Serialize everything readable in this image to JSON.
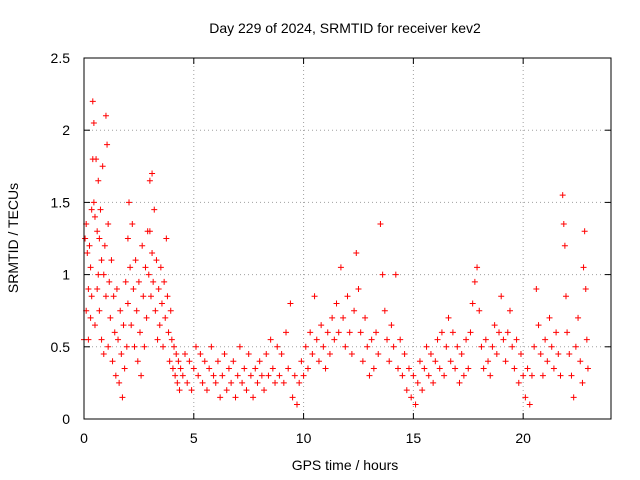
{
  "chart_data": {
    "type": "scatter",
    "title": "Day 229 of 2024, SRMTID for receiver kev2",
    "xlabel": "GPS time / hours",
    "ylabel": "SRMTID / TECUs",
    "xlim": [
      0,
      24
    ],
    "ylim": [
      0,
      2.5
    ],
    "xticks": [
      0,
      5,
      10,
      15,
      20
    ],
    "xtick_labels": [
      "0",
      "5",
      "10",
      "15",
      "20"
    ],
    "yticks": [
      0,
      0.5,
      1,
      1.5,
      2,
      2.5
    ],
    "ytick_labels": [
      "0",
      "0.5",
      "1",
      "1.5",
      "2",
      "2.5"
    ],
    "grid": true,
    "marker": "+",
    "series": [
      {
        "name": "SRMTID",
        "color": "#ff0000",
        "points": [
          [
            0.0,
            0.55
          ],
          [
            0.05,
            1.25
          ],
          [
            0.1,
            1.35
          ],
          [
            0.1,
            0.75
          ],
          [
            0.15,
            1.15
          ],
          [
            0.2,
            0.9
          ],
          [
            0.2,
            0.55
          ],
          [
            0.25,
            1.2
          ],
          [
            0.3,
            1.05
          ],
          [
            0.3,
            0.7
          ],
          [
            0.35,
            1.45
          ],
          [
            0.35,
            0.85
          ],
          [
            0.4,
            2.2
          ],
          [
            0.4,
            1.8
          ],
          [
            0.45,
            2.05
          ],
          [
            0.45,
            1.5
          ],
          [
            0.5,
            1.4
          ],
          [
            0.5,
            0.65
          ],
          [
            0.55,
            1.8
          ],
          [
            0.6,
            1.3
          ],
          [
            0.6,
            0.9
          ],
          [
            0.65,
            1.65
          ],
          [
            0.65,
            1.0
          ],
          [
            0.7,
            1.25
          ],
          [
            0.7,
            0.75
          ],
          [
            0.75,
            1.45
          ],
          [
            0.8,
            1.1
          ],
          [
            0.8,
            0.55
          ],
          [
            0.85,
            1.75
          ],
          [
            0.9,
            1.0
          ],
          [
            0.9,
            0.45
          ],
          [
            0.95,
            1.2
          ],
          [
            1.0,
            2.1
          ],
          [
            1.0,
            0.85
          ],
          [
            1.05,
            1.9
          ],
          [
            1.1,
            1.35
          ],
          [
            1.1,
            0.5
          ],
          [
            1.15,
            0.95
          ],
          [
            1.2,
            0.7
          ],
          [
            1.25,
            1.1
          ],
          [
            1.3,
            0.4
          ],
          [
            1.35,
            0.85
          ],
          [
            1.4,
            0.6
          ],
          [
            1.45,
            0.3
          ],
          [
            1.5,
            0.9
          ],
          [
            1.55,
            0.55
          ],
          [
            1.6,
            0.25
          ],
          [
            1.65,
            0.75
          ],
          [
            1.7,
            0.45
          ],
          [
            1.75,
            0.15
          ],
          [
            1.8,
            0.65
          ],
          [
            1.85,
            0.35
          ],
          [
            1.9,
            0.95
          ],
          [
            1.95,
            0.5
          ],
          [
            2.0,
            1.25
          ],
          [
            2.0,
            0.8
          ],
          [
            2.05,
            1.5
          ],
          [
            2.1,
            1.05
          ],
          [
            2.15,
            0.65
          ],
          [
            2.2,
            1.35
          ],
          [
            2.25,
            0.9
          ],
          [
            2.3,
            0.5
          ],
          [
            2.35,
            1.1
          ],
          [
            2.4,
            0.75
          ],
          [
            2.45,
            0.4
          ],
          [
            2.5,
            0.95
          ],
          [
            2.55,
            0.6
          ],
          [
            2.6,
            0.3
          ],
          [
            2.65,
            1.2
          ],
          [
            2.7,
            0.85
          ],
          [
            2.75,
            0.5
          ],
          [
            2.8,
            1.05
          ],
          [
            2.85,
            0.7
          ],
          [
            2.9,
            1.3
          ],
          [
            2.95,
            1.0
          ],
          [
            3.0,
            1.65
          ],
          [
            3.0,
            1.3
          ],
          [
            3.05,
            0.85
          ],
          [
            3.1,
            1.7
          ],
          [
            3.1,
            1.15
          ],
          [
            3.15,
            0.95
          ],
          [
            3.2,
            1.45
          ],
          [
            3.25,
            0.75
          ],
          [
            3.3,
            1.1
          ],
          [
            3.35,
            0.55
          ],
          [
            3.4,
            0.9
          ],
          [
            3.45,
            0.65
          ],
          [
            3.5,
            1.05
          ],
          [
            3.55,
            0.8
          ],
          [
            3.6,
            0.5
          ],
          [
            3.65,
            0.95
          ],
          [
            3.7,
            0.7
          ],
          [
            3.75,
            1.25
          ],
          [
            3.8,
            0.85
          ],
          [
            3.85,
            0.6
          ],
          [
            3.9,
            0.4
          ],
          [
            3.95,
            0.75
          ],
          [
            4.0,
            0.55
          ],
          [
            4.05,
            0.35
          ],
          [
            4.1,
            0.5
          ],
          [
            4.15,
            0.3
          ],
          [
            4.2,
            0.45
          ],
          [
            4.25,
            0.25
          ],
          [
            4.3,
            0.4
          ],
          [
            4.35,
            0.2
          ],
          [
            4.4,
            0.35
          ],
          [
            4.5,
            0.3
          ],
          [
            4.6,
            0.45
          ],
          [
            4.7,
            0.25
          ],
          [
            4.8,
            0.4
          ],
          [
            4.9,
            0.2
          ],
          [
            5.0,
            0.35
          ],
          [
            5.1,
            0.5
          ],
          [
            5.2,
            0.3
          ],
          [
            5.3,
            0.45
          ],
          [
            5.4,
            0.25
          ],
          [
            5.5,
            0.4
          ],
          [
            5.6,
            0.2
          ],
          [
            5.7,
            0.35
          ],
          [
            5.8,
            0.5
          ],
          [
            5.9,
            0.3
          ],
          [
            6.0,
            0.25
          ],
          [
            6.1,
            0.4
          ],
          [
            6.2,
            0.15
          ],
          [
            6.3,
            0.3
          ],
          [
            6.4,
            0.45
          ],
          [
            6.5,
            0.2
          ],
          [
            6.6,
            0.35
          ],
          [
            6.7,
            0.25
          ],
          [
            6.8,
            0.4
          ],
          [
            6.9,
            0.15
          ],
          [
            7.0,
            0.3
          ],
          [
            7.1,
            0.5
          ],
          [
            7.2,
            0.25
          ],
          [
            7.3,
            0.35
          ],
          [
            7.4,
            0.2
          ],
          [
            7.5,
            0.45
          ],
          [
            7.6,
            0.3
          ],
          [
            7.7,
            0.15
          ],
          [
            7.8,
            0.35
          ],
          [
            7.9,
            0.25
          ],
          [
            8.0,
            0.4
          ],
          [
            8.1,
            0.3
          ],
          [
            8.2,
            0.2
          ],
          [
            8.3,
            0.45
          ],
          [
            8.4,
            0.3
          ],
          [
            8.5,
            0.55
          ],
          [
            8.6,
            0.35
          ],
          [
            8.7,
            0.25
          ],
          [
            8.8,
            0.5
          ],
          [
            8.9,
            0.3
          ],
          [
            9.0,
            0.45
          ],
          [
            9.1,
            0.25
          ],
          [
            9.2,
            0.6
          ],
          [
            9.3,
            0.35
          ],
          [
            9.4,
            0.8
          ],
          [
            9.5,
            0.15
          ],
          [
            9.6,
            0.3
          ],
          [
            9.7,
            0.1
          ],
          [
            9.8,
            0.25
          ],
          [
            9.9,
            0.4
          ],
          [
            10.0,
            0.3
          ],
          [
            10.1,
            0.5
          ],
          [
            10.2,
            0.35
          ],
          [
            10.3,
            0.6
          ],
          [
            10.4,
            0.45
          ],
          [
            10.5,
            0.85
          ],
          [
            10.6,
            0.55
          ],
          [
            10.7,
            0.4
          ],
          [
            10.8,
            0.65
          ],
          [
            10.9,
            0.5
          ],
          [
            11.0,
            0.35
          ],
          [
            11.1,
            0.6
          ],
          [
            11.2,
            0.45
          ],
          [
            11.3,
            0.7
          ],
          [
            11.4,
            0.55
          ],
          [
            11.5,
            0.8
          ],
          [
            11.6,
            0.6
          ],
          [
            11.7,
            1.05
          ],
          [
            11.8,
            0.7
          ],
          [
            11.9,
            0.5
          ],
          [
            12.0,
            0.85
          ],
          [
            12.1,
            0.6
          ],
          [
            12.2,
            0.45
          ],
          [
            12.3,
            0.75
          ],
          [
            12.4,
            1.15
          ],
          [
            12.5,
            0.9
          ],
          [
            12.6,
            0.6
          ],
          [
            12.7,
            0.4
          ],
          [
            12.8,
            0.7
          ],
          [
            12.9,
            0.5
          ],
          [
            13.0,
            0.3
          ],
          [
            13.1,
            0.55
          ],
          [
            13.2,
            0.35
          ],
          [
            13.3,
            0.6
          ],
          [
            13.4,
            0.45
          ],
          [
            13.5,
            1.35
          ],
          [
            13.6,
            1.0
          ],
          [
            13.7,
            0.75
          ],
          [
            13.8,
            0.55
          ],
          [
            13.9,
            0.4
          ],
          [
            14.0,
            0.65
          ],
          [
            14.1,
            0.5
          ],
          [
            14.2,
            1.0
          ],
          [
            14.3,
            0.35
          ],
          [
            14.4,
            0.55
          ],
          [
            14.5,
            0.3
          ],
          [
            14.6,
            0.45
          ],
          [
            14.7,
            0.2
          ],
          [
            14.8,
            0.35
          ],
          [
            14.9,
            0.15
          ],
          [
            15.0,
            0.3
          ],
          [
            15.1,
            0.1
          ],
          [
            15.2,
            0.25
          ],
          [
            15.3,
            0.4
          ],
          [
            15.4,
            0.2
          ],
          [
            15.5,
            0.35
          ],
          [
            15.6,
            0.5
          ],
          [
            15.7,
            0.3
          ],
          [
            15.8,
            0.45
          ],
          [
            15.9,
            0.25
          ],
          [
            16.0,
            0.4
          ],
          [
            16.1,
            0.55
          ],
          [
            16.2,
            0.35
          ],
          [
            16.3,
            0.6
          ],
          [
            16.4,
            0.3
          ],
          [
            16.5,
            0.5
          ],
          [
            16.6,
            0.7
          ],
          [
            16.7,
            0.4
          ],
          [
            16.8,
            0.6
          ],
          [
            16.9,
            0.35
          ],
          [
            17.0,
            0.5
          ],
          [
            17.1,
            0.25
          ],
          [
            17.2,
            0.45
          ],
          [
            17.3,
            0.3
          ],
          [
            17.4,
            0.55
          ],
          [
            17.5,
            0.35
          ],
          [
            17.6,
            0.6
          ],
          [
            17.7,
            0.8
          ],
          [
            17.8,
            0.95
          ],
          [
            17.9,
            1.05
          ],
          [
            18.0,
            0.75
          ],
          [
            18.1,
            0.5
          ],
          [
            18.2,
            0.35
          ],
          [
            18.3,
            0.55
          ],
          [
            18.4,
            0.4
          ],
          [
            18.5,
            0.3
          ],
          [
            18.6,
            0.5
          ],
          [
            18.7,
            0.65
          ],
          [
            18.8,
            0.45
          ],
          [
            18.9,
            0.6
          ],
          [
            19.0,
            0.85
          ],
          [
            19.1,
            0.55
          ],
          [
            19.2,
            0.4
          ],
          [
            19.3,
            0.6
          ],
          [
            19.4,
            0.75
          ],
          [
            19.5,
            0.5
          ],
          [
            19.6,
            0.35
          ],
          [
            19.7,
            0.55
          ],
          [
            19.8,
            0.25
          ],
          [
            19.9,
            0.45
          ],
          [
            20.0,
            0.3
          ],
          [
            20.1,
            0.15
          ],
          [
            20.2,
            0.35
          ],
          [
            20.3,
            0.1
          ],
          [
            20.4,
            0.3
          ],
          [
            20.5,
            0.5
          ],
          [
            20.6,
            0.9
          ],
          [
            20.7,
            0.65
          ],
          [
            20.8,
            0.45
          ],
          [
            20.9,
            0.3
          ],
          [
            21.0,
            0.55
          ],
          [
            21.1,
            0.4
          ],
          [
            21.2,
            0.7
          ],
          [
            21.3,
            0.5
          ],
          [
            21.4,
            0.35
          ],
          [
            21.5,
            0.6
          ],
          [
            21.6,
            0.45
          ],
          [
            21.7,
            0.3
          ],
          [
            21.8,
            1.55
          ],
          [
            21.85,
            1.35
          ],
          [
            21.9,
            1.2
          ],
          [
            21.95,
            0.85
          ],
          [
            22.0,
            0.6
          ],
          [
            22.1,
            0.45
          ],
          [
            22.2,
            0.3
          ],
          [
            22.3,
            0.15
          ],
          [
            22.4,
            0.5
          ],
          [
            22.5,
            0.7
          ],
          [
            22.6,
            0.4
          ],
          [
            22.7,
            0.25
          ],
          [
            22.75,
            1.05
          ],
          [
            22.8,
            1.3
          ],
          [
            22.85,
            0.9
          ],
          [
            22.9,
            0.55
          ],
          [
            22.95,
            0.35
          ]
        ]
      }
    ]
  }
}
